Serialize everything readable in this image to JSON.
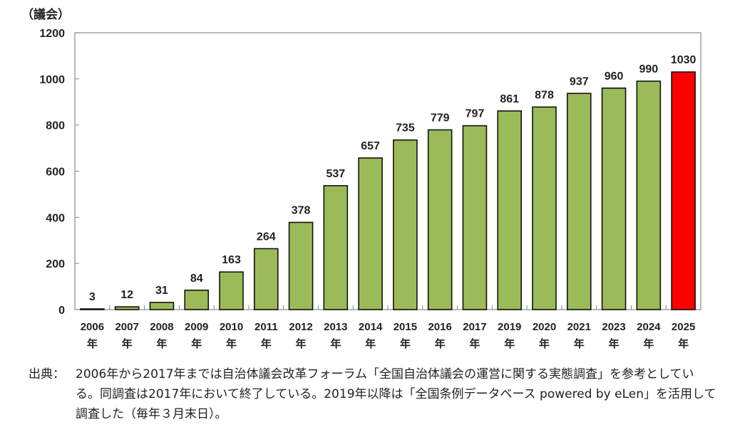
{
  "chart_data": {
    "type": "bar",
    "unit_label": "（議会）",
    "categories": [
      "2006",
      "2007",
      "2008",
      "2009",
      "2010",
      "2011",
      "2012",
      "2013",
      "2014",
      "2015",
      "2016",
      "2017",
      "2019",
      "2020",
      "2021",
      "2023",
      "2024",
      "2025"
    ],
    "category_suffix": "年",
    "values": [
      3,
      12,
      31,
      84,
      163,
      264,
      378,
      537,
      657,
      735,
      779,
      797,
      861,
      878,
      937,
      960,
      990,
      1030
    ],
    "ylim": [
      0,
      1200
    ],
    "yticks": [
      0,
      200,
      400,
      600,
      800,
      1000,
      1200
    ],
    "bar_color": "#9BBB59",
    "highlight_color": "#FF0000",
    "highlight_category": "2025",
    "grid": false,
    "data_labels": true
  },
  "source": {
    "label": "出典：",
    "text": "2006年から2017年までは自治体議会改革フォーラム「全国自治体議会の運営に関する実態調査」を参考としている。同調査は2017年において終了している。2019年以降は「全国条例データベース powered by eLen」を活用して調査した（毎年３月末日）。"
  }
}
